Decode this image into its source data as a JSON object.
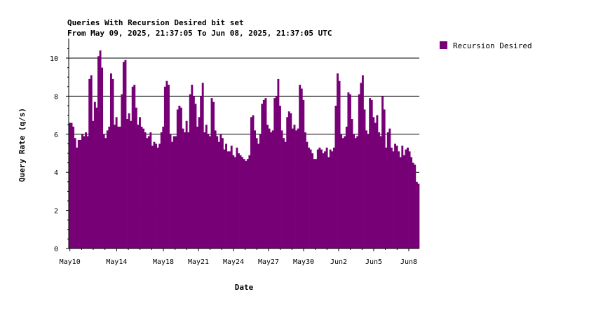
{
  "chart_data": {
    "type": "bar",
    "title": "Queries With Recursion Desired bit set",
    "subtitle": "From May 09, 2025, 21:37:05 To Jun 08, 2025, 21:37:05 UTC",
    "xlabel": "Date",
    "ylabel": "Query Rate (q/s)",
    "ylim": [
      0,
      11
    ],
    "y_ticks": [
      0,
      2,
      4,
      6,
      8,
      10
    ],
    "grid": "horizontal at major y ticks",
    "legend_position": "top-right",
    "colors": {
      "series": "#770077",
      "grid": "#000000",
      "background": "#ffffff"
    },
    "x_range_days": [
      "May 09, 2025, 21:37:05",
      "Jun 08, 2025, 21:37:05"
    ],
    "x_ticks": [
      {
        "label": "May10",
        "day": 0.1
      },
      {
        "label": "May14",
        "day": 4.1
      },
      {
        "label": "May18",
        "day": 8.1
      },
      {
        "label": "May21",
        "day": 11.1
      },
      {
        "label": "May24",
        "day": 14.1
      },
      {
        "label": "May27",
        "day": 17.1
      },
      {
        "label": "May30",
        "day": 20.1
      },
      {
        "label": "Jun2",
        "day": 23.1
      },
      {
        "label": "Jun5",
        "day": 26.1
      },
      {
        "label": "Jun8",
        "day": 29.1
      }
    ],
    "series": [
      {
        "name": "Recursion Desired",
        "sample_interval_hours": 3,
        "values": [
          6.6,
          6.6,
          6.4,
          5.8,
          5.3,
          5.7,
          5.7,
          6.0,
          5.9,
          6.1,
          5.9,
          8.9,
          9.1,
          6.7,
          7.7,
          7.4,
          10.1,
          10.4,
          9.5,
          6.0,
          5.8,
          6.2,
          6.4,
          9.2,
          8.9,
          6.5,
          6.9,
          6.4,
          6.4,
          8.1,
          9.8,
          9.9,
          6.8,
          7.1,
          6.7,
          8.5,
          8.6,
          7.4,
          6.5,
          6.9,
          6.4,
          6.3,
          6.1,
          5.8,
          5.9,
          6.1,
          5.4,
          5.6,
          5.5,
          5.3,
          5.5,
          6.1,
          6.4,
          8.5,
          8.8,
          8.6,
          6.0,
          5.6,
          5.9,
          5.9,
          7.3,
          7.5,
          7.4,
          6.3,
          6.1,
          6.7,
          6.1,
          8.1,
          8.6,
          8.0,
          7.6,
          6.4,
          6.9,
          8.0,
          8.7,
          6.1,
          6.5,
          6.0,
          5.9,
          7.9,
          7.7,
          6.2,
          5.9,
          5.6,
          6.0,
          5.8,
          5.2,
          5.5,
          5.1,
          5.1,
          5.4,
          4.9,
          4.8,
          5.3,
          5.0,
          4.9,
          4.8,
          4.7,
          4.6,
          4.7,
          4.9,
          6.9,
          7.0,
          6.2,
          5.8,
          5.5,
          6.0,
          7.6,
          7.8,
          7.9,
          6.5,
          6.3,
          6.1,
          6.2,
          7.9,
          8.0,
          8.9,
          7.5,
          6.2,
          5.8,
          5.6,
          6.9,
          7.2,
          7.1,
          6.3,
          6.5,
          6.2,
          6.3,
          8.6,
          8.4,
          7.8,
          6.1,
          5.6,
          5.3,
          5.2,
          5.0,
          4.7,
          4.7,
          5.2,
          5.3,
          5.2,
          5.0,
          5.1,
          5.3,
          4.8,
          5.2,
          5.1,
          5.3,
          7.5,
          9.2,
          8.8,
          6.0,
          5.8,
          5.9,
          6.4,
          8.2,
          8.1,
          6.8,
          6.0,
          5.8,
          5.9,
          8.1,
          8.7,
          9.1,
          7.3,
          6.2,
          6.0,
          7.9,
          7.8,
          6.9,
          6.6,
          7.0,
          6.1,
          5.9,
          8.0,
          7.3,
          5.3,
          6.1,
          6.3,
          5.3,
          5.1,
          5.5,
          5.4,
          5.1,
          4.8,
          5.4,
          4.9,
          5.2,
          5.3,
          5.1,
          4.8,
          4.5,
          4.4,
          3.5,
          3.4
        ]
      }
    ]
  }
}
